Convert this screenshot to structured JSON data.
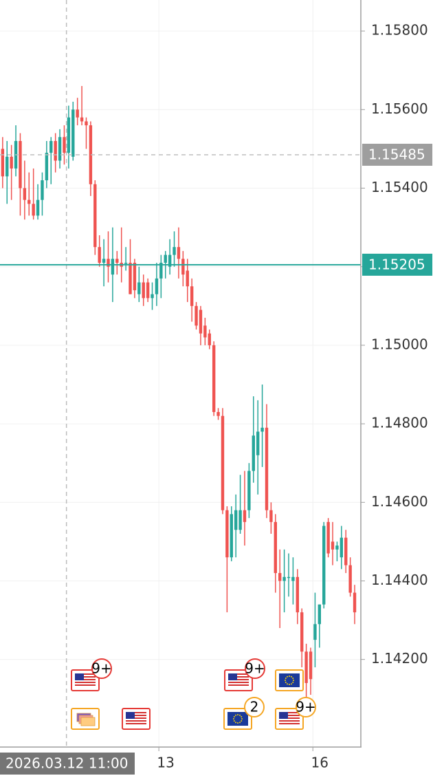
{
  "chart_data": {
    "type": "candlestick",
    "up_color": "#26a69a",
    "down_color": "#ef5350",
    "grid": true,
    "xlim": [
      -0.6,
      81.4
    ],
    "ylim": [
      1.13977,
      1.15879
    ],
    "yticks": [
      {
        "value": 1.158,
        "label": "1.15800"
      },
      {
        "value": 1.156,
        "label": "1.15600"
      },
      {
        "value": 1.154,
        "label": "1.15400"
      },
      {
        "value": 1.152,
        "label": "1.15200"
      },
      {
        "value": 1.15,
        "label": "1.15000"
      },
      {
        "value": 1.148,
        "label": "1.14800"
      },
      {
        "value": 1.146,
        "label": "1.14600"
      },
      {
        "value": 1.144,
        "label": "1.14400"
      },
      {
        "value": 1.142,
        "label": "1.14200"
      }
    ],
    "xticks": [
      {
        "value": 35.5,
        "label": "13"
      },
      {
        "value": 70.5,
        "label": "16"
      }
    ],
    "crosshair": {
      "x": {
        "value": 14.5,
        "label": "2026.03.12 11:00"
      },
      "y": {
        "value": 1.15485,
        "label": "1.15485"
      }
    },
    "price_line": {
      "value": 1.15205,
      "label": "1.15205",
      "color": "#26a69a"
    },
    "candles": [
      [
        1.155,
        1.1553,
        1.154,
        1.1543
      ],
      [
        1.1543,
        1.1552,
        1.1536,
        1.1548
      ],
      [
        1.1548,
        1.1551,
        1.1537,
        1.1545
      ],
      [
        1.1545,
        1.1556,
        1.1543,
        1.1552
      ],
      [
        1.1552,
        1.1554,
        1.1533,
        1.154
      ],
      [
        1.154,
        1.1547,
        1.1532,
        1.1537
      ],
      [
        1.1537,
        1.1544,
        1.1533,
        1.1536
      ],
      [
        1.1536,
        1.1545,
        1.1532,
        1.1533
      ],
      [
        1.1533,
        1.1541,
        1.1532,
        1.1537
      ],
      [
        1.1537,
        1.1544,
        1.1533,
        1.1542
      ],
      [
        1.1542,
        1.1552,
        1.154,
        1.1549
      ],
      [
        1.1549,
        1.1553,
        1.1541,
        1.1552
      ],
      [
        1.1552,
        1.1554,
        1.1544,
        1.1547
      ],
      [
        1.1547,
        1.1555,
        1.1545,
        1.1553
      ],
      [
        1.1553,
        1.1556,
        1.1546,
        1.1549
      ],
      [
        1.1549,
        1.1561,
        1.1545,
        1.1558
      ],
      [
        1.1548,
        1.1562,
        1.1547,
        1.156
      ],
      [
        1.156,
        1.1563,
        1.1556,
        1.1558
      ],
      [
        1.1558,
        1.1566,
        1.1556,
        1.1557
      ],
      [
        1.1557,
        1.1558,
        1.155,
        1.1556
      ],
      [
        1.1556,
        1.1557,
        1.1538,
        1.1541
      ],
      [
        1.1541,
        1.1542,
        1.1523,
        1.1525
      ],
      [
        1.1525,
        1.1528,
        1.152,
        1.1521
      ],
      [
        1.1521,
        1.1527,
        1.1515,
        1.1522
      ],
      [
        1.1522,
        1.1529,
        1.1516,
        1.152
      ],
      [
        1.1518,
        1.153,
        1.1511,
        1.1522
      ],
      [
        1.1522,
        1.1524,
        1.1518,
        1.1521
      ],
      [
        1.1521,
        1.153,
        1.1516,
        1.152
      ],
      [
        1.1521,
        1.1525,
        1.1519,
        1.1521
      ],
      [
        1.1521,
        1.1527,
        1.1513,
        1.1513
      ],
      [
        1.1521,
        1.1522,
        1.1512,
        1.1514
      ],
      [
        1.1513,
        1.152,
        1.1511,
        1.1516
      ],
      [
        1.1516,
        1.1518,
        1.151,
        1.1512
      ],
      [
        1.1516,
        1.1517,
        1.1511,
        1.1512
      ],
      [
        1.1512,
        1.1516,
        1.1509,
        1.1513
      ],
      [
        1.1513,
        1.1521,
        1.151,
        1.1517
      ],
      [
        1.1517,
        1.1523,
        1.1512,
        1.1521
      ],
      [
        1.1521,
        1.1524,
        1.1517,
        1.1523
      ],
      [
        1.152,
        1.1527,
        1.1518,
        1.1523
      ],
      [
        1.1523,
        1.1529,
        1.152,
        1.1525
      ],
      [
        1.1525,
        1.153,
        1.1517,
        1.1522
      ],
      [
        1.1522,
        1.1524,
        1.1515,
        1.1518
      ],
      [
        1.1519,
        1.1522,
        1.1511,
        1.1515
      ],
      [
        1.1515,
        1.1517,
        1.1506,
        1.151
      ],
      [
        1.151,
        1.1511,
        1.1504,
        1.1505
      ],
      [
        1.1509,
        1.151,
        1.15,
        1.1503
      ],
      [
        1.1505,
        1.1507,
        1.15,
        1.1502
      ],
      [
        1.1503,
        1.1504,
        1.1499,
        1.15
      ],
      [
        1.15,
        1.1501,
        1.1482,
        1.1483
      ],
      [
        1.1483,
        1.1484,
        1.1481,
        1.1482
      ],
      [
        1.1482,
        1.1484,
        1.1457,
        1.1458
      ],
      [
        1.1458,
        1.1459,
        1.1432,
        1.1446
      ],
      [
        1.1446,
        1.1459,
        1.1445,
        1.1457
      ],
      [
        1.1453,
        1.1462,
        1.1446,
        1.1458
      ],
      [
        1.1453,
        1.1467,
        1.1452,
        1.1458
      ],
      [
        1.1458,
        1.1468,
        1.1449,
        1.1455
      ],
      [
        1.1458,
        1.147,
        1.1456,
        1.1468
      ],
      [
        1.1468,
        1.1487,
        1.1465,
        1.1477
      ],
      [
        1.1472,
        1.1486,
        1.1462,
        1.1478
      ],
      [
        1.1478,
        1.149,
        1.1469,
        1.1479
      ],
      [
        1.1479,
        1.1485,
        1.1456,
        1.1458
      ],
      [
        1.1458,
        1.146,
        1.1452,
        1.1455
      ],
      [
        1.1455,
        1.1457,
        1.1437,
        1.1442
      ],
      [
        1.1442,
        1.1448,
        1.1428,
        1.144
      ],
      [
        1.144,
        1.1448,
        1.1432,
        1.1441
      ],
      [
        1.1441,
        1.1447,
        1.1436,
        1.1441
      ],
      [
        1.144,
        1.1446,
        1.1434,
        1.1441
      ],
      [
        1.1441,
        1.1443,
        1.1429,
        1.1432
      ],
      [
        1.1432,
        1.1433,
        1.1418,
        1.1422
      ],
      [
        1.1422,
        1.1424,
        1.141,
        1.1414
      ],
      [
        1.1422,
        1.1423,
        1.1411,
        1.1415
      ],
      [
        1.1425,
        1.1437,
        1.1418,
        1.1429
      ],
      [
        1.1429,
        1.1434,
        1.1423,
        1.1434
      ],
      [
        1.1434,
        1.1455,
        1.1433,
        1.1454
      ],
      [
        1.1455,
        1.1456,
        1.1446,
        1.1447
      ],
      [
        1.145,
        1.1455,
        1.1444,
        1.1448
      ],
      [
        1.1448,
        1.145,
        1.1445,
        1.1449
      ],
      [
        1.1446,
        1.1454,
        1.1443,
        1.1451
      ],
      [
        1.1451,
        1.1453,
        1.1442,
        1.1444
      ],
      [
        1.1444,
        1.1446,
        1.1436,
        1.1437
      ],
      [
        1.1437,
        1.1439,
        1.1429,
        1.1432
      ]
    ],
    "event_badges": [
      "9+",
      "9+",
      "2",
      "9+"
    ]
  }
}
